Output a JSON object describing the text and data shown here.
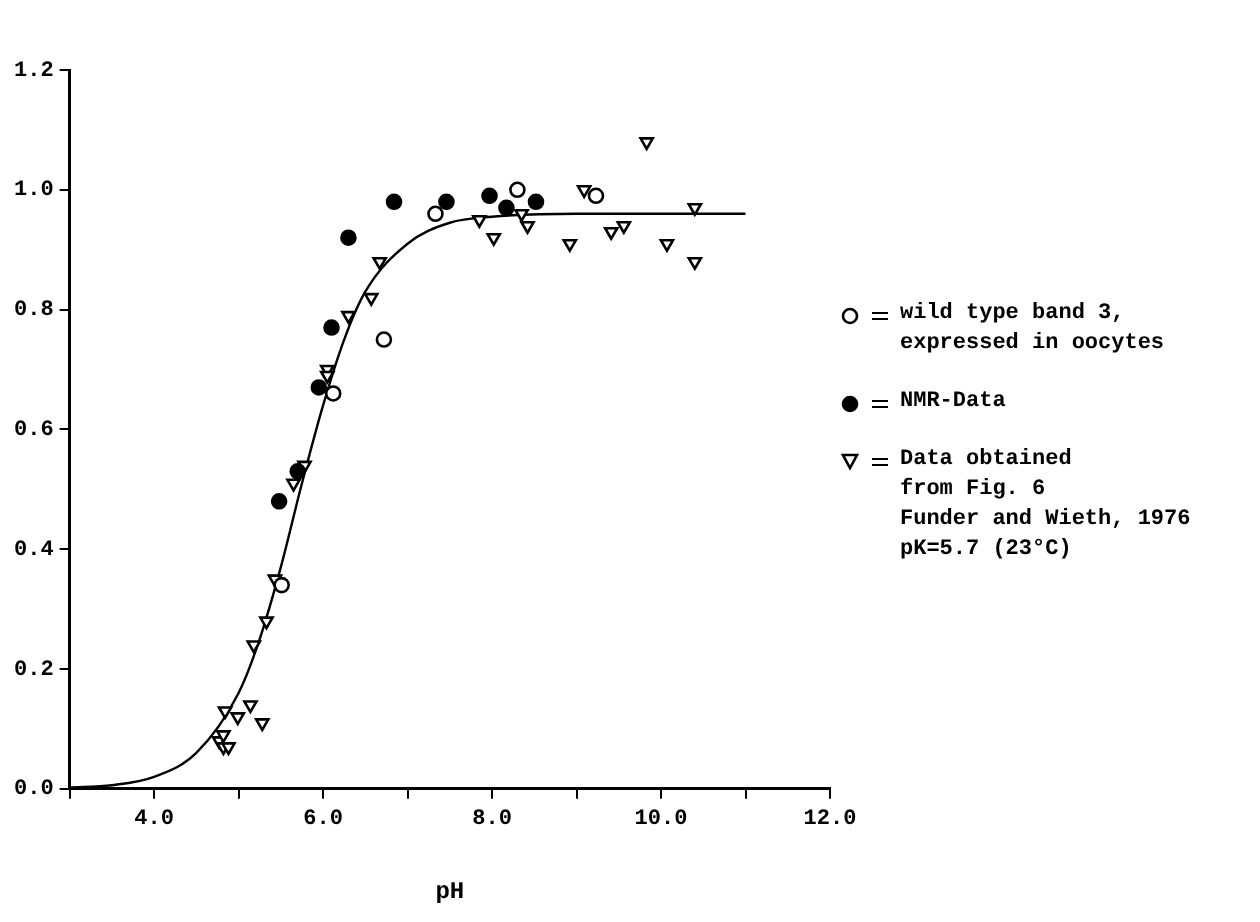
{
  "chart_data": {
    "type": "scatter",
    "xlabel": "pH",
    "xlim": [
      3,
      12
    ],
    "xticks": [
      {
        "value": 3,
        "label": null
      },
      {
        "value": 4,
        "label": "4.0"
      },
      {
        "value": 5,
        "label": null
      },
      {
        "value": 6,
        "label": "6.0"
      },
      {
        "value": 7,
        "label": null
      },
      {
        "value": 8,
        "label": "8.0"
      },
      {
        "value": 9,
        "label": null
      },
      {
        "value": 10,
        "label": "10.0"
      },
      {
        "value": 11,
        "label": null
      },
      {
        "value": 12,
        "label": "12.0"
      }
    ],
    "ylim": [
      0,
      1.2
    ],
    "yticks": [
      {
        "value": 0,
        "label": "0.0"
      },
      {
        "value": 0.2,
        "label": "0.2"
      },
      {
        "value": 0.4,
        "label": "0.4"
      },
      {
        "value": 0.6,
        "label": "0.6"
      },
      {
        "value": 0.8,
        "label": "0.8"
      },
      {
        "value": 1.0,
        "label": "1.0"
      },
      {
        "value": 1.2,
        "label": "1.2"
      }
    ],
    "grid": false,
    "legend": "right",
    "series": [
      {
        "name": "wild type band 3,\nexpressed in oocytes",
        "type": "scatter",
        "marker": "circle",
        "color": "#ffffff",
        "x": [
          5.51,
          6.12,
          6.72,
          7.33,
          8.3,
          9.23
        ],
        "values": [
          0.34,
          0.66,
          0.75,
          0.96,
          1.0,
          0.99
        ]
      },
      {
        "name": "NMR-Data",
        "type": "scatter",
        "marker": "circle",
        "color": "#000000",
        "x": [
          5.48,
          5.7,
          5.95,
          6.1,
          6.3,
          6.84,
          7.46,
          7.97,
          8.17,
          8.52
        ],
        "values": [
          0.48,
          0.53,
          0.67,
          0.77,
          0.92,
          0.98,
          0.98,
          0.99,
          0.97,
          0.98
        ]
      },
      {
        "name": "Data obtained\nfrom Fig. 6\nFunder and Wieth, 1976\npK=5.7 (23°C)",
        "type": "scatter",
        "marker": "triangle",
        "color": "#ffffff",
        "x": [
          4.77,
          4.82,
          4.88,
          4.82,
          4.84,
          4.99,
          5.14,
          5.28,
          5.18,
          5.33,
          5.43,
          5.65,
          5.78,
          6.05,
          6.05,
          6.3,
          6.57,
          6.67,
          7.85,
          8.02,
          8.35,
          8.42,
          8.92,
          9.09,
          9.41,
          9.56,
          9.83,
          10.07,
          10.4,
          10.4
        ],
        "values": [
          0.08,
          0.07,
          0.07,
          0.09,
          0.13,
          0.12,
          0.14,
          0.11,
          0.24,
          0.28,
          0.35,
          0.51,
          0.54,
          0.7,
          0.69,
          0.79,
          0.82,
          0.88,
          0.95,
          0.92,
          0.96,
          0.94,
          0.91,
          1.0,
          0.93,
          0.94,
          1.08,
          0.91,
          0.97,
          0.88
        ]
      },
      {
        "type": "line",
        "marker": "none",
        "line_style": "solid",
        "color": "#000000",
        "x": [
          3,
          3.5,
          4,
          4.5,
          5,
          5.25,
          5.5,
          5.75,
          6,
          6.25,
          6.5,
          7,
          7.5,
          8,
          9,
          10,
          11
        ],
        "values": [
          0.002,
          0.006,
          0.02,
          0.06,
          0.16,
          0.25,
          0.37,
          0.51,
          0.64,
          0.75,
          0.83,
          0.91,
          0.945,
          0.955,
          0.96,
          0.96,
          0.96
        ]
      }
    ]
  }
}
